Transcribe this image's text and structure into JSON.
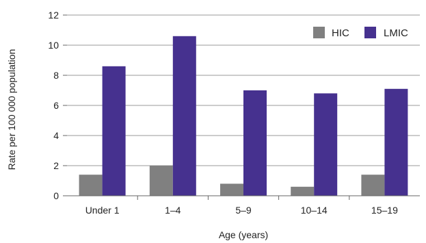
{
  "chart_data": {
    "type": "bar",
    "categories": [
      "Under 1",
      "1–4",
      "5–9",
      "10–14",
      "15–19"
    ],
    "series": [
      {
        "name": "HIC",
        "values": [
          1.4,
          2.0,
          0.8,
          0.6,
          1.4
        ],
        "color": "#808080"
      },
      {
        "name": "LMIC",
        "values": [
          8.6,
          10.6,
          7.0,
          6.8,
          7.1
        ],
        "color": "#46318f"
      }
    ],
    "title": "",
    "xlabel": "Age (years)",
    "ylabel": "Rate per 100 000 population",
    "ylim": [
      0,
      12
    ],
    "yticks": [
      0,
      2,
      4,
      6,
      8,
      10,
      12
    ],
    "grid": true,
    "legend_position": "top-right"
  }
}
